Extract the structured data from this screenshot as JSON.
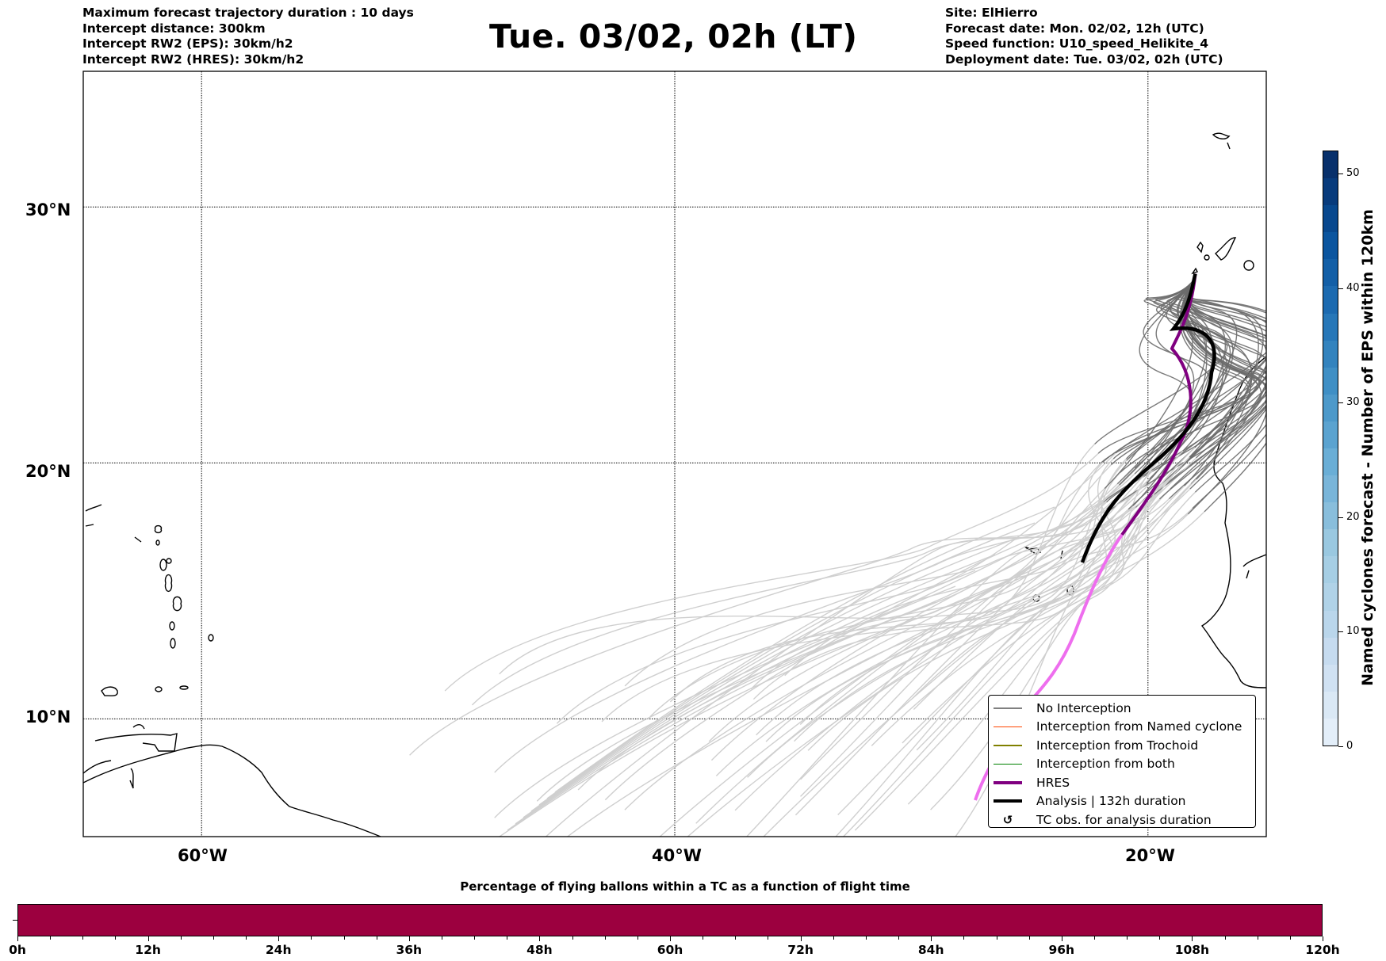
{
  "header": {
    "left_lines": [
      "Maximum forecast trajectory duration : 10 days",
      "Intercept distance: 300km",
      "Intercept RW2 (EPS):  30km/h2",
      "Intercept RW2 (HRES): 30km/h2"
    ],
    "title": "Tue. 03/02, 02h (LT)",
    "right_lines": [
      "Site: ElHierro",
      "Forecast date: Mon. 02/02, 12h (UTC)",
      "Speed function: U10_speed_Helikite_4",
      "Deployment date: Tue. 03/02, 02h (UTC)"
    ]
  },
  "map": {
    "lat_labels": [
      "30°N",
      "20°N",
      "10°N"
    ],
    "lon_labels": [
      "60°W",
      "40°W",
      "20°W"
    ],
    "lat_values": [
      30,
      20,
      10
    ],
    "lon_values": [
      -60,
      -40,
      -20
    ],
    "extent": {
      "lon_min": -65,
      "lon_max": -15,
      "lat_min": 5.4,
      "lat_max": 35.3
    },
    "colors": {
      "no_interception_recent": "#6b6b6b",
      "no_interception_late": "#cfcfcf",
      "hres_early": "#800080",
      "hres_late": "#ee6eee",
      "analysis": "#000000",
      "coastline": "#000000"
    },
    "site": {
      "name": "ElHierro",
      "lat": 27.7,
      "lon": -18.0
    }
  },
  "legend": {
    "items": [
      {
        "label": "No Interception",
        "kind": "line",
        "color": "#808080",
        "weight": "thin"
      },
      {
        "label": "Interception from Named cyclone",
        "kind": "line",
        "color": "#ff4500",
        "weight": "thin"
      },
      {
        "label": "Interception from Trochoid",
        "kind": "line",
        "color": "#808000",
        "weight": "thin"
      },
      {
        "label": "Interception from both",
        "kind": "line",
        "color": "#008000",
        "weight": "thin"
      },
      {
        "label": "HRES",
        "kind": "line",
        "color": "#800080",
        "weight": "thick"
      },
      {
        "label": "Analysis | 132h duration",
        "kind": "line",
        "color": "#000000",
        "weight": "thick"
      },
      {
        "label": "TC obs. for analysis duration",
        "kind": "glyph",
        "glyph": "↺",
        "color": "#000000"
      }
    ]
  },
  "colorbar": {
    "label": "Named cyclones forecast - Number of EPS within 120km",
    "min": 0,
    "max": 52,
    "ticks": [
      "0",
      "10",
      "20",
      "30",
      "40",
      "50"
    ],
    "tick_values": [
      0,
      10,
      20,
      30,
      40,
      50
    ],
    "segment_colors": [
      "#e3eef9",
      "#dae8f5",
      "#d0e1f2",
      "#c6dbef",
      "#bad6eb",
      "#b0d2e7",
      "#a6cee4",
      "#9ac8e0",
      "#89bedc",
      "#79b5d9",
      "#6aaed6",
      "#5ba3d0",
      "#4d99ca",
      "#3f8fc5",
      "#3383be",
      "#2777b8",
      "#1c6ab0",
      "#135fa7",
      "#0b559f",
      "#08488e",
      "#083b7c",
      "#08306b"
    ]
  },
  "time_bar": {
    "title": "Percentage of flying ballons within a TC as a function of flight time",
    "fill_color": "#9c003f",
    "x_range_hours": [
      0,
      120
    ],
    "tick_labels": [
      "0h",
      "12h",
      "24h",
      "36h",
      "48h",
      "60h",
      "72h",
      "84h",
      "96h",
      "108h",
      "120h"
    ],
    "minor_tick_hours": 3
  }
}
